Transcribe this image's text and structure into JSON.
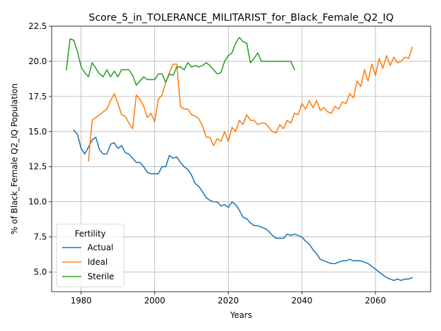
{
  "chart_data": {
    "type": "line",
    "title": "Score_5_in_TOLERANCE_MILITARIST_for_Black_Female_Q2_IQ",
    "xlabel": "Years",
    "ylabel": "% of Black_Female Q2_IQ Population",
    "xlim": [
      1972,
      2075
    ],
    "ylim": [
      3.6,
      22.5
    ],
    "xticks": [
      1980,
      2000,
      2020,
      2040,
      2060
    ],
    "yticks": [
      5.0,
      7.5,
      10.0,
      12.5,
      15.0,
      17.5,
      20.0,
      22.5
    ],
    "xtick_labels": [
      "1980",
      "2000",
      "2020",
      "2040",
      "2060"
    ],
    "ytick_labels": [
      "5.0",
      "7.5",
      "10.0",
      "12.5",
      "15.0",
      "17.5",
      "20.0",
      "22.5"
    ],
    "grid": true,
    "legend": {
      "title": "Fertility",
      "placement": "lower-left"
    },
    "series": [
      {
        "name": "Actual",
        "color": "#1f77b4",
        "x": [
          1978,
          1979,
          1980,
          1981,
          1982,
          1983,
          1984,
          1985,
          1986,
          1987,
          1988,
          1989,
          1990,
          1991,
          1992,
          1993,
          1994,
          1995,
          1996,
          1997,
          1998,
          1999,
          2000,
          2001,
          2002,
          2003,
          2004,
          2005,
          2006,
          2007,
          2008,
          2009,
          2010,
          2011,
          2012,
          2013,
          2014,
          2015,
          2016,
          2017,
          2018,
          2019,
          2020,
          2021,
          2022,
          2023,
          2024,
          2025,
          2026,
          2027,
          2028,
          2029,
          2030,
          2031,
          2032,
          2033,
          2034,
          2035,
          2036,
          2037,
          2038,
          2039,
          2040,
          2041,
          2042,
          2043,
          2044,
          2045,
          2046,
          2047,
          2048,
          2049,
          2050,
          2051,
          2052,
          2053,
          2054,
          2055,
          2056,
          2057,
          2058,
          2059,
          2060,
          2061,
          2062,
          2063,
          2064,
          2065,
          2066,
          2067,
          2068,
          2069,
          2070
        ],
        "values": [
          15.1,
          14.8,
          13.8,
          13.4,
          13.9,
          14.4,
          14.6,
          13.7,
          13.4,
          13.4,
          14.1,
          14.2,
          13.8,
          14.0,
          13.5,
          13.4,
          13.1,
          12.8,
          12.8,
          12.5,
          12.1,
          12.0,
          12.0,
          12.0,
          12.5,
          12.5,
          13.3,
          13.1,
          13.2,
          12.8,
          12.5,
          12.3,
          11.9,
          11.3,
          11.1,
          10.7,
          10.3,
          10.1,
          10.0,
          10.0,
          9.7,
          9.8,
          9.6,
          10.0,
          9.8,
          9.4,
          8.9,
          8.8,
          8.5,
          8.3,
          8.3,
          8.2,
          8.1,
          7.9,
          7.6,
          7.4,
          7.4,
          7.4,
          7.7,
          7.6,
          7.7,
          7.6,
          7.5,
          7.2,
          7.0,
          6.6,
          6.3,
          5.9,
          5.8,
          5.7,
          5.6,
          5.6,
          5.7,
          5.8,
          5.8,
          5.9,
          5.8,
          5.8,
          5.8,
          5.7,
          5.6,
          5.4,
          5.2,
          5.0,
          4.8,
          4.6,
          4.5,
          4.4,
          4.5,
          4.4,
          4.5,
          4.5,
          4.6
        ]
      },
      {
        "name": "Ideal",
        "color": "#ff7f0e",
        "x": [
          1982,
          1983,
          1984,
          1985,
          1986,
          1987,
          1988,
          1989,
          1990,
          1991,
          1992,
          1993,
          1994,
          1995,
          1996,
          1997,
          1998,
          1999,
          2000,
          2001,
          2002,
          2003,
          2004,
          2005,
          2006,
          2007,
          2008,
          2009,
          2010,
          2011,
          2012,
          2013,
          2014,
          2015,
          2016,
          2017,
          2018,
          2019,
          2020,
          2021,
          2022,
          2023,
          2024,
          2025,
          2026,
          2027,
          2028,
          2029,
          2030,
          2031,
          2032,
          2033,
          2034,
          2035,
          2036,
          2037,
          2038,
          2039,
          2040,
          2041,
          2042,
          2043,
          2044,
          2045,
          2046,
          2047,
          2048,
          2049,
          2050,
          2051,
          2052,
          2053,
          2054,
          2055,
          2056,
          2057,
          2058,
          2059,
          2060,
          2061,
          2062,
          2063,
          2064,
          2065,
          2066,
          2067,
          2068,
          2069,
          2070
        ],
        "values": [
          12.9,
          15.8,
          16.0,
          16.2,
          16.4,
          16.6,
          17.2,
          17.7,
          17.0,
          16.2,
          16.1,
          15.6,
          15.2,
          17.6,
          17.3,
          16.8,
          16.0,
          16.3,
          15.7,
          17.3,
          17.6,
          18.5,
          19.2,
          19.8,
          19.8,
          16.8,
          16.6,
          16.6,
          16.2,
          16.1,
          15.9,
          15.4,
          14.6,
          14.6,
          14.0,
          14.5,
          14.3,
          15.0,
          14.3,
          15.3,
          15.0,
          15.8,
          15.5,
          16.2,
          15.8,
          15.8,
          15.5,
          15.6,
          15.6,
          15.3,
          15.0,
          14.9,
          15.5,
          15.2,
          15.8,
          15.6,
          16.3,
          16.2,
          17.0,
          16.6,
          17.2,
          16.7,
          17.2,
          16.5,
          16.7,
          16.4,
          16.3,
          16.8,
          16.6,
          17.1,
          17.0,
          17.7,
          17.4,
          18.6,
          18.2,
          19.4,
          18.6,
          19.8,
          19.0,
          20.2,
          19.5,
          20.4,
          19.7,
          20.3,
          19.9,
          20.0,
          20.3,
          20.2,
          21.0
        ]
      },
      {
        "name": "Sterile",
        "color": "#2ca02c",
        "x": [
          1976,
          1977,
          1978,
          1979,
          1980,
          1981,
          1982,
          1983,
          1984,
          1985,
          1986,
          1987,
          1988,
          1989,
          1990,
          1991,
          1992,
          1993,
          1994,
          1995,
          1996,
          1997,
          1998,
          1999,
          2000,
          2001,
          2002,
          2003,
          2004,
          2005,
          2006,
          2007,
          2008,
          2009,
          2010,
          2011,
          2012,
          2013,
          2014,
          2015,
          2016,
          2017,
          2018,
          2019,
          2020,
          2021,
          2022,
          2023,
          2024,
          2025,
          2026,
          2027,
          2028,
          2029,
          2030,
          2031,
          2032,
          2033,
          2034,
          2035,
          2036,
          2037,
          2038
        ],
        "values": [
          19.4,
          21.6,
          21.5,
          20.7,
          19.6,
          19.2,
          18.9,
          19.9,
          19.5,
          19.1,
          18.9,
          19.4,
          18.9,
          19.3,
          18.9,
          19.4,
          19.4,
          19.4,
          19.0,
          18.3,
          18.6,
          18.9,
          18.7,
          18.7,
          18.7,
          19.1,
          19.1,
          18.5,
          19.1,
          19.0,
          19.6,
          19.6,
          19.4,
          19.9,
          19.6,
          19.7,
          19.6,
          19.7,
          19.9,
          19.7,
          19.4,
          19.1,
          19.2,
          20.0,
          20.4,
          20.6,
          21.3,
          21.7,
          21.4,
          21.3,
          19.9,
          20.2,
          20.6,
          20.0,
          20.0,
          20.0,
          20.0,
          20.0,
          20.0,
          20.0,
          20.0,
          20.0,
          19.4
        ]
      }
    ]
  }
}
